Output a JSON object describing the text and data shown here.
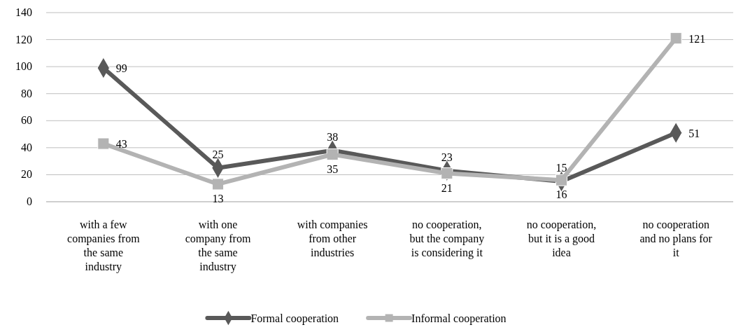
{
  "chart_data": {
    "type": "line",
    "categories": [
      "with a few companies from the same industry",
      "with one company from the same industry",
      "with companies from other industries",
      "no cooperation, but the company is considering it",
      "no cooperation, but it is a good idea",
      "no cooperation and no plans for it"
    ],
    "series": [
      {
        "name": "Formal cooperation",
        "color": "#595959",
        "marker": "diamond",
        "values": [
          99,
          25,
          38,
          23,
          15,
          51
        ]
      },
      {
        "name": "Informal cooperation",
        "color": "#b3b3b3",
        "marker": "square",
        "values": [
          43,
          13,
          35,
          21,
          16,
          121
        ]
      }
    ],
    "ylim": [
      0,
      140
    ],
    "yticks": [
      0,
      20,
      40,
      60,
      80,
      100,
      120,
      140
    ],
    "grid": "y",
    "legend": "bottom",
    "data_labels": true
  }
}
